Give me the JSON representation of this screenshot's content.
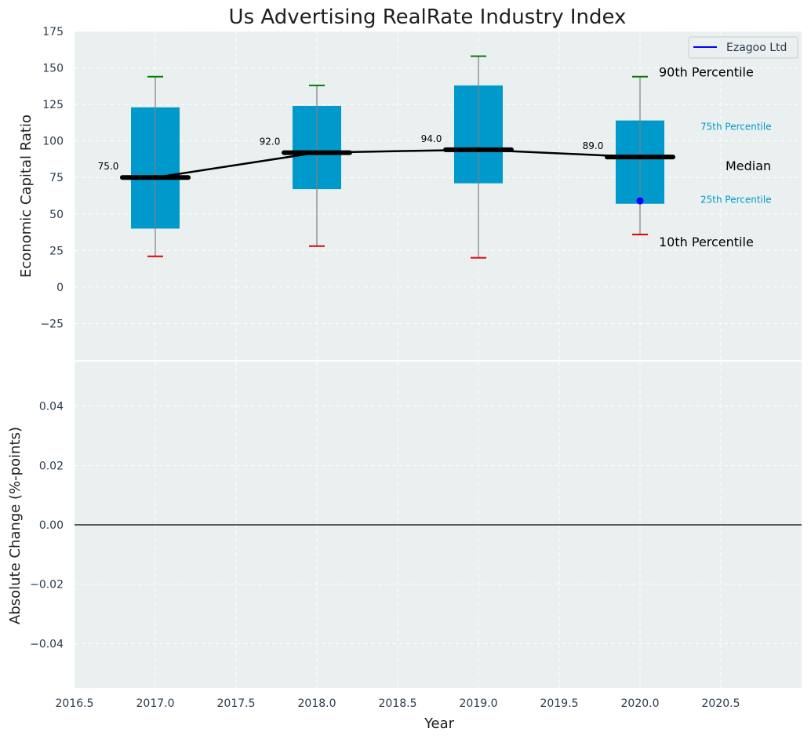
{
  "chart_data": [
    {
      "type": "box",
      "title": "Us Advertising RealRate Industry Index",
      "ylabel": "Economic Capital Ratio",
      "xlim": [
        2016.5,
        2021.0
      ],
      "ylim": [
        -50,
        175
      ],
      "x_ticks": [
        2016.5,
        2017.0,
        2017.5,
        2018.0,
        2018.5,
        2019.0,
        2019.5,
        2020.0,
        2020.5
      ],
      "y_ticks": [
        -25,
        0,
        25,
        50,
        75,
        100,
        125,
        150,
        175
      ],
      "grid": true,
      "boxes": [
        {
          "x": 2017.0,
          "p10": 21,
          "q1": 40,
          "median": 75,
          "q3": 123,
          "p90": 144
        },
        {
          "x": 2018.0,
          "p10": 28,
          "q1": 67,
          "median": 92,
          "q3": 124,
          "p90": 138
        },
        {
          "x": 2019.0,
          "p10": 20,
          "q1": 71,
          "median": 94,
          "q3": 138,
          "p90": 158
        },
        {
          "x": 2020.0,
          "p10": 36,
          "q1": 57,
          "median": 89,
          "q3": 114,
          "p90": 144
        }
      ],
      "median_labels": [
        "75.0",
        "92.0",
        "94.0",
        "89.0"
      ],
      "company_points": [
        {
          "x": 2020.0,
          "y": 59
        }
      ],
      "legend": {
        "entries": [
          "Ezagoo Ltd"
        ],
        "placement": "top-right"
      },
      "annotations": {
        "p90": "90th Percentile",
        "p75": "75th Percentile",
        "median": "Median",
        "p25": "25th Percentile",
        "p10": "10th Percentile"
      },
      "colors": {
        "box": "#0099cc",
        "p90_cap": "#008000",
        "p10_cap": "#e00000",
        "company": "#0000ff",
        "median_line": "#000000"
      }
    },
    {
      "type": "line",
      "ylabel": "Absolute Change (%-points)",
      "xlabel": "Year",
      "xlim": [
        2016.5,
        2021.0
      ],
      "ylim": [
        -0.055,
        0.055
      ],
      "x_ticks": [
        2016.5,
        2017.0,
        2017.5,
        2018.0,
        2018.5,
        2019.0,
        2019.5,
        2020.0,
        2020.5
      ],
      "x_tick_labels": [
        "2016.5",
        "2017.0",
        "2017.5",
        "2018.0",
        "2018.5",
        "2019.0",
        "2019.5",
        "2020.0",
        "2020.5"
      ],
      "y_ticks": [
        -0.04,
        -0.02,
        0.0,
        0.02,
        0.04
      ],
      "y_tick_labels": [
        "−0.04",
        "−0.02",
        "0.00",
        "0.02",
        "0.04"
      ],
      "reference_line": 0.0,
      "grid": true
    }
  ]
}
